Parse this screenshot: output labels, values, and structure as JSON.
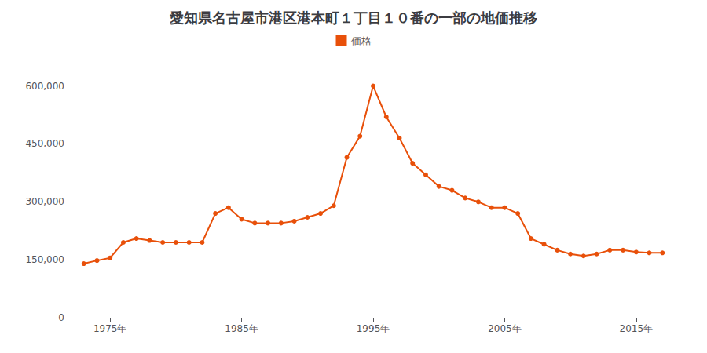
{
  "chart_data": {
    "type": "line",
    "title": "愛知県名古屋市港区港本町１丁目１０番の一部の地価推移",
    "x": [
      1973,
      1974,
      1975,
      1976,
      1977,
      1978,
      1979,
      1980,
      1981,
      1982,
      1983,
      1984,
      1985,
      1986,
      1987,
      1988,
      1989,
      1990,
      1991,
      1992,
      1993,
      1994,
      1995,
      1996,
      1997,
      1998,
      1999,
      2000,
      2001,
      2002,
      2003,
      2004,
      2005,
      2006,
      2007,
      2008,
      2009,
      2010,
      2011,
      2012,
      2013,
      2014,
      2015,
      2016,
      2017
    ],
    "series": [
      {
        "name": "価格",
        "color": "#E8500A",
        "marker": "circle",
        "values": [
          140000,
          148000,
          155000,
          195000,
          205000,
          200000,
          195000,
          195000,
          195000,
          195000,
          270000,
          285000,
          255000,
          245000,
          245000,
          245000,
          250000,
          260000,
          270000,
          290000,
          415000,
          470000,
          600000,
          520000,
          465000,
          400000,
          370000,
          340000,
          330000,
          310000,
          300000,
          285000,
          285000,
          270000,
          205000,
          190000,
          175000,
          165000,
          160000,
          165000,
          175000,
          175000,
          170000,
          168000,
          168000
        ]
      }
    ],
    "xlim": [
      1972,
      2018
    ],
    "xticks": [
      {
        "value": 1975,
        "label": "1975年"
      },
      {
        "value": 1985,
        "label": "1985年"
      },
      {
        "value": 1995,
        "label": "1995年"
      },
      {
        "value": 2005,
        "label": "2005年"
      },
      {
        "value": 2015,
        "label": "2015年"
      }
    ],
    "ylim": [
      0,
      650000
    ],
    "yticks": [
      0,
      {
        "value": 150000,
        "label": "150,000"
      },
      {
        "value": 300000,
        "label": "300,000"
      },
      {
        "value": 450000,
        "label": "450,000"
      },
      {
        "value": 600000,
        "label": "600,000"
      }
    ],
    "grid": true,
    "legend": "top"
  }
}
